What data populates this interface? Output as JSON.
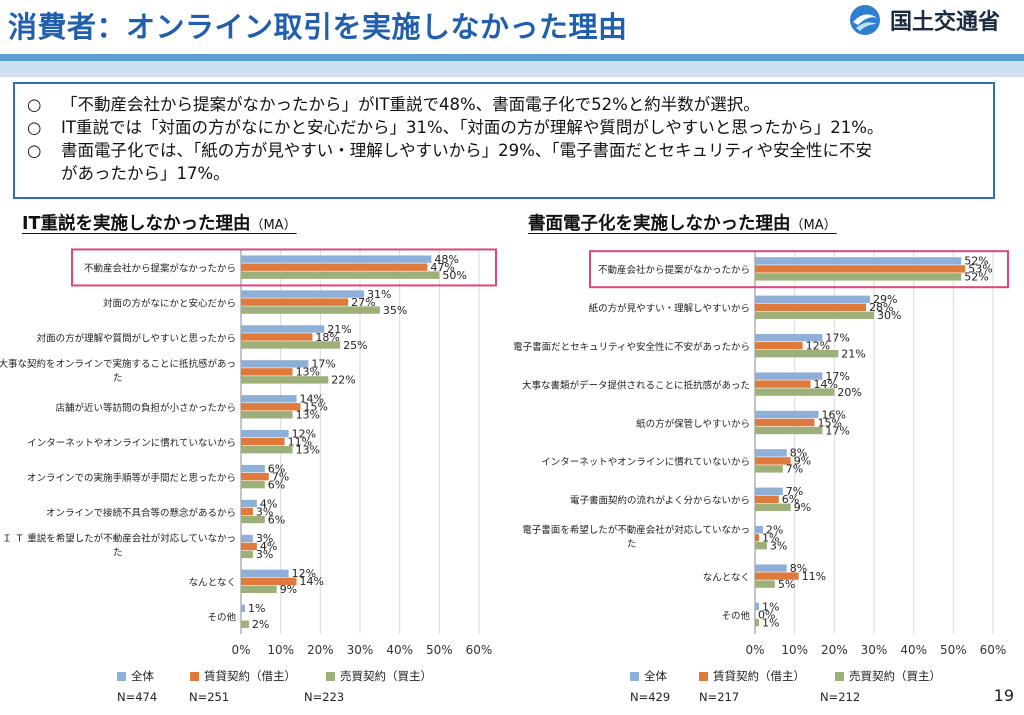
{
  "title": "消費者：オンライン取引を実施しなかった理由",
  "org": "国土交通省",
  "page_number": "19",
  "summary": [
    {
      "bullet": "○",
      "text": "「不動産会社から提案がなかったから」がIT重説で48%、書面電子化で52%と約半数が選択。"
    },
    {
      "bullet": "○",
      "text": "IT重説では「対面の方がなにかと安心だから」31%、「対面の方が理解や質問がしやすいと思ったから」21%。"
    },
    {
      "bullet": "○",
      "text": "書面電子化では、「紙の方が見やすい・理解しやすいから」29%、「電子書面だとセキュリティや安全性に不安"
    },
    {
      "bullet": "",
      "text": "があったから」17%。"
    }
  ],
  "colors": {
    "s1": "#8eb0d8",
    "s2": "#e07a3c",
    "s3": "#9db07a",
    "highlight": "#e0457e",
    "title": "#1f5fae"
  },
  "chart_data": [
    {
      "type": "bar",
      "orientation": "horizontal",
      "title": "IT重説を実施しなかった理由",
      "title_suffix": "（MA）",
      "categories": [
        "不動産会社から提案がなかったから",
        "対面の方がなにかと安心だから",
        "対面の方が理解や質問がしやすいと思ったから",
        "大事な契約をオンラインで実施することに抵抗感があった",
        "店舗が近い等訪問の負担が小さかったから",
        "インターネットやオンラインに慣れていないから",
        "オンラインでの実施手順等が手間だと思ったから",
        "オンラインで接続不具合等の懸念があるから",
        "ＩＴ重説を希望したが不動産会社が対応していなかった",
        "なんとなく",
        "その他"
      ],
      "category_lines": [
        [
          "不動産会社から提案がなかったから"
        ],
        [
          "対面の方がなにかと安心だから"
        ],
        [
          "対面の方が理解や質問がしやすいと思ったから"
        ],
        [
          "大事な契約をオンラインで実施することに抵抗感があっ",
          "た"
        ],
        [
          "店舗が近い等訪問の負担が小さかったから"
        ],
        [
          "インターネットやオンラインに慣れていないから"
        ],
        [
          "オンラインでの実施手順等が手間だと思ったから"
        ],
        [
          "オンラインで接続不具合等の懸念があるから"
        ],
        [
          "Ｉ Ｔ 重説を希望したが不動産会社が対応していなかっ",
          "た"
        ],
        [
          "なんとなく"
        ],
        [
          "その他"
        ]
      ],
      "series": [
        {
          "name": "全体",
          "values": [
            48,
            31,
            21,
            17,
            14,
            12,
            6,
            4,
            3,
            12,
            1
          ],
          "labels": [
            "48%",
            "31%",
            "21%",
            "17%",
            "14%",
            "12%",
            "6%",
            "4%",
            "3%",
            "12%",
            "1%"
          ]
        },
        {
          "name": "賃貸契約（借主）",
          "values": [
            47,
            27,
            18,
            13,
            15,
            11,
            7,
            3,
            4,
            14,
            0
          ],
          "labels": [
            "47%",
            "27%",
            "18%",
            "13%",
            "15%",
            "11%",
            "7%",
            "3%",
            "4%",
            "14%",
            ""
          ]
        },
        {
          "name": "売買契約（買主）",
          "values": [
            50,
            35,
            25,
            22,
            13,
            13,
            6,
            6,
            3,
            9,
            2
          ],
          "labels": [
            "50%",
            "35%",
            "25%",
            "22%",
            "13%",
            "13%",
            "6%",
            "6%",
            "3%",
            "9%",
            "2%"
          ]
        }
      ],
      "xlim": [
        0,
        60
      ],
      "ticks": [
        "0%",
        "10%",
        "20%",
        "30%",
        "40%",
        "50%",
        "60%"
      ],
      "highlighted_category": 0,
      "n_labels": [
        "N=474",
        "N=251",
        "N=223"
      ]
    },
    {
      "type": "bar",
      "orientation": "horizontal",
      "title": "書面電子化を実施しなかった理由",
      "title_suffix": "（MA）",
      "categories": [
        "不動産会社から提案がなかったから",
        "紙の方が見やすい・理解しやすいから",
        "電子書面だとセキュリティや安全性に不安があったから",
        "大事な書類がデータ提供されることに抵抗感があった",
        "紙の方が保管しやすいから",
        "インターネットやオンラインに慣れていないから",
        "電子書面契約の流れがよく分からないから",
        "電子書面を希望したが不動産会社が対応していなかった",
        "なんとなく",
        "その他"
      ],
      "category_lines": [
        [
          "不動産会社から提案がなかったから"
        ],
        [
          "紙の方が見やすい・理解しやすいから"
        ],
        [
          "電子書面だとセキュリティや安全性に不安があったから"
        ],
        [
          "大事な書類がデータ提供されることに抵抗感があった"
        ],
        [
          "紙の方が保管しやすいから"
        ],
        [
          "インターネットやオンラインに慣れていないから"
        ],
        [
          "電子書面契約の流れがよく分からないから"
        ],
        [
          "電子書面を希望したが不動産会社が対応していなかっ",
          "た"
        ],
        [
          "なんとなく"
        ],
        [
          "その他"
        ]
      ],
      "series": [
        {
          "name": "全体",
          "values": [
            52,
            29,
            17,
            17,
            16,
            8,
            7,
            2,
            8,
            1
          ],
          "labels": [
            "52%",
            "29%",
            "17%",
            "17%",
            "16%",
            "8%",
            "7%",
            "2%",
            "8%",
            "1%"
          ]
        },
        {
          "name": "賃貸契約（借主）",
          "values": [
            53,
            28,
            12,
            14,
            15,
            9,
            6,
            1,
            11,
            0
          ],
          "labels": [
            "53%",
            "28%",
            "12%",
            "14%",
            "15%",
            "9%",
            "6%",
            "1%",
            "11%",
            "0%"
          ]
        },
        {
          "name": "売買契約（買主）",
          "values": [
            52,
            30,
            21,
            20,
            17,
            7,
            9,
            3,
            5,
            1
          ],
          "labels": [
            "52%",
            "30%",
            "21%",
            "20%",
            "17%",
            "7%",
            "9%",
            "3%",
            "5%",
            "1%"
          ]
        }
      ],
      "xlim": [
        0,
        60
      ],
      "ticks": [
        "0%",
        "10%",
        "20%",
        "30%",
        "40%",
        "50%",
        "60%"
      ],
      "highlighted_category": 0,
      "n_labels": [
        "N=429",
        "N=217",
        "N=212"
      ]
    }
  ]
}
